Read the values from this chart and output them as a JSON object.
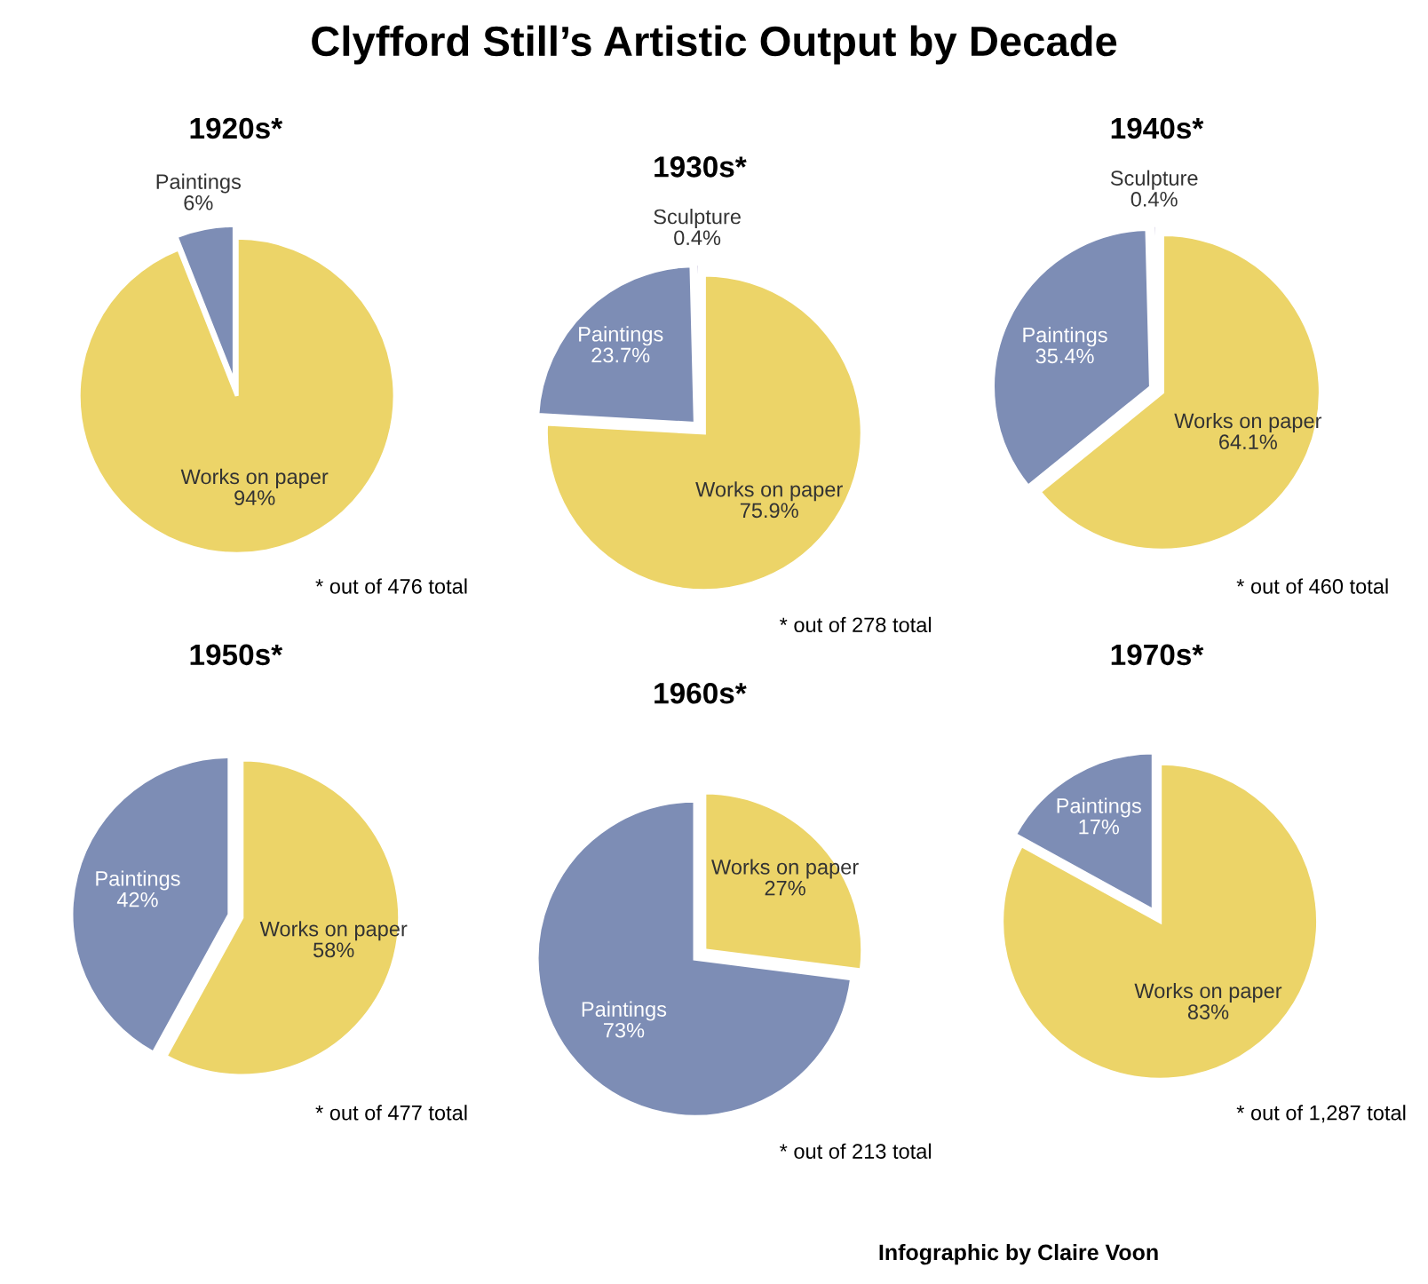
{
  "chart_data": [
    {
      "type": "other",
      "title": "Clyfford Still’s Artistic Output by Decade",
      "annotations": [
        "Infographic by Claire Voon"
      ]
    },
    {
      "type": "pie",
      "title": "1920s*",
      "categories": [
        "Paintings",
        "Works on paper"
      ],
      "values": [
        6,
        94
      ],
      "value_labels": [
        "6%",
        "94%"
      ],
      "colors": [
        "#7d8db5",
        "#ecd468"
      ],
      "annotations": [
        "* out of 476 total"
      ]
    },
    {
      "type": "pie",
      "title": "1930s*",
      "categories": [
        "Sculpture",
        "Paintings",
        "Works on paper"
      ],
      "values": [
        0.4,
        23.7,
        75.9
      ],
      "value_labels": [
        "0.4%",
        "23.7%",
        "75.9%"
      ],
      "colors": [
        "#8a7db4",
        "#7d8db5",
        "#ecd468"
      ],
      "annotations": [
        "* out of 278 total"
      ]
    },
    {
      "type": "pie",
      "title": "1940s*",
      "categories": [
        "Sculpture",
        "Paintings",
        "Works on paper"
      ],
      "values": [
        0.4,
        35.4,
        64.1
      ],
      "value_labels": [
        "0.4%",
        "35.4%",
        "64.1%"
      ],
      "colors": [
        "#8a7db4",
        "#7d8db5",
        "#ecd468"
      ],
      "annotations": [
        "* out of 460 total"
      ]
    },
    {
      "type": "pie",
      "title": "1950s*",
      "categories": [
        "Paintings",
        "Works on paper"
      ],
      "values": [
        42,
        58
      ],
      "value_labels": [
        "42%",
        "58%"
      ],
      "colors": [
        "#7d8db5",
        "#ecd468"
      ],
      "annotations": [
        "* out of 477 total"
      ]
    },
    {
      "type": "pie",
      "title": "1960s*",
      "categories": [
        "Paintings",
        "Works on paper"
      ],
      "values": [
        73,
        27
      ],
      "value_labels": [
        "73%",
        "27%"
      ],
      "colors": [
        "#7d8db5",
        "#ecd468"
      ],
      "annotations": [
        "* out of 213 total"
      ]
    },
    {
      "type": "pie",
      "title": "1970s*",
      "categories": [
        "Paintings",
        "Works on paper"
      ],
      "values": [
        17,
        83
      ],
      "value_labels": [
        "17%",
        "83%"
      ],
      "colors": [
        "#7d8db5",
        "#ecd468"
      ],
      "annotations": [
        "* out of 1,287 total"
      ]
    }
  ]
}
